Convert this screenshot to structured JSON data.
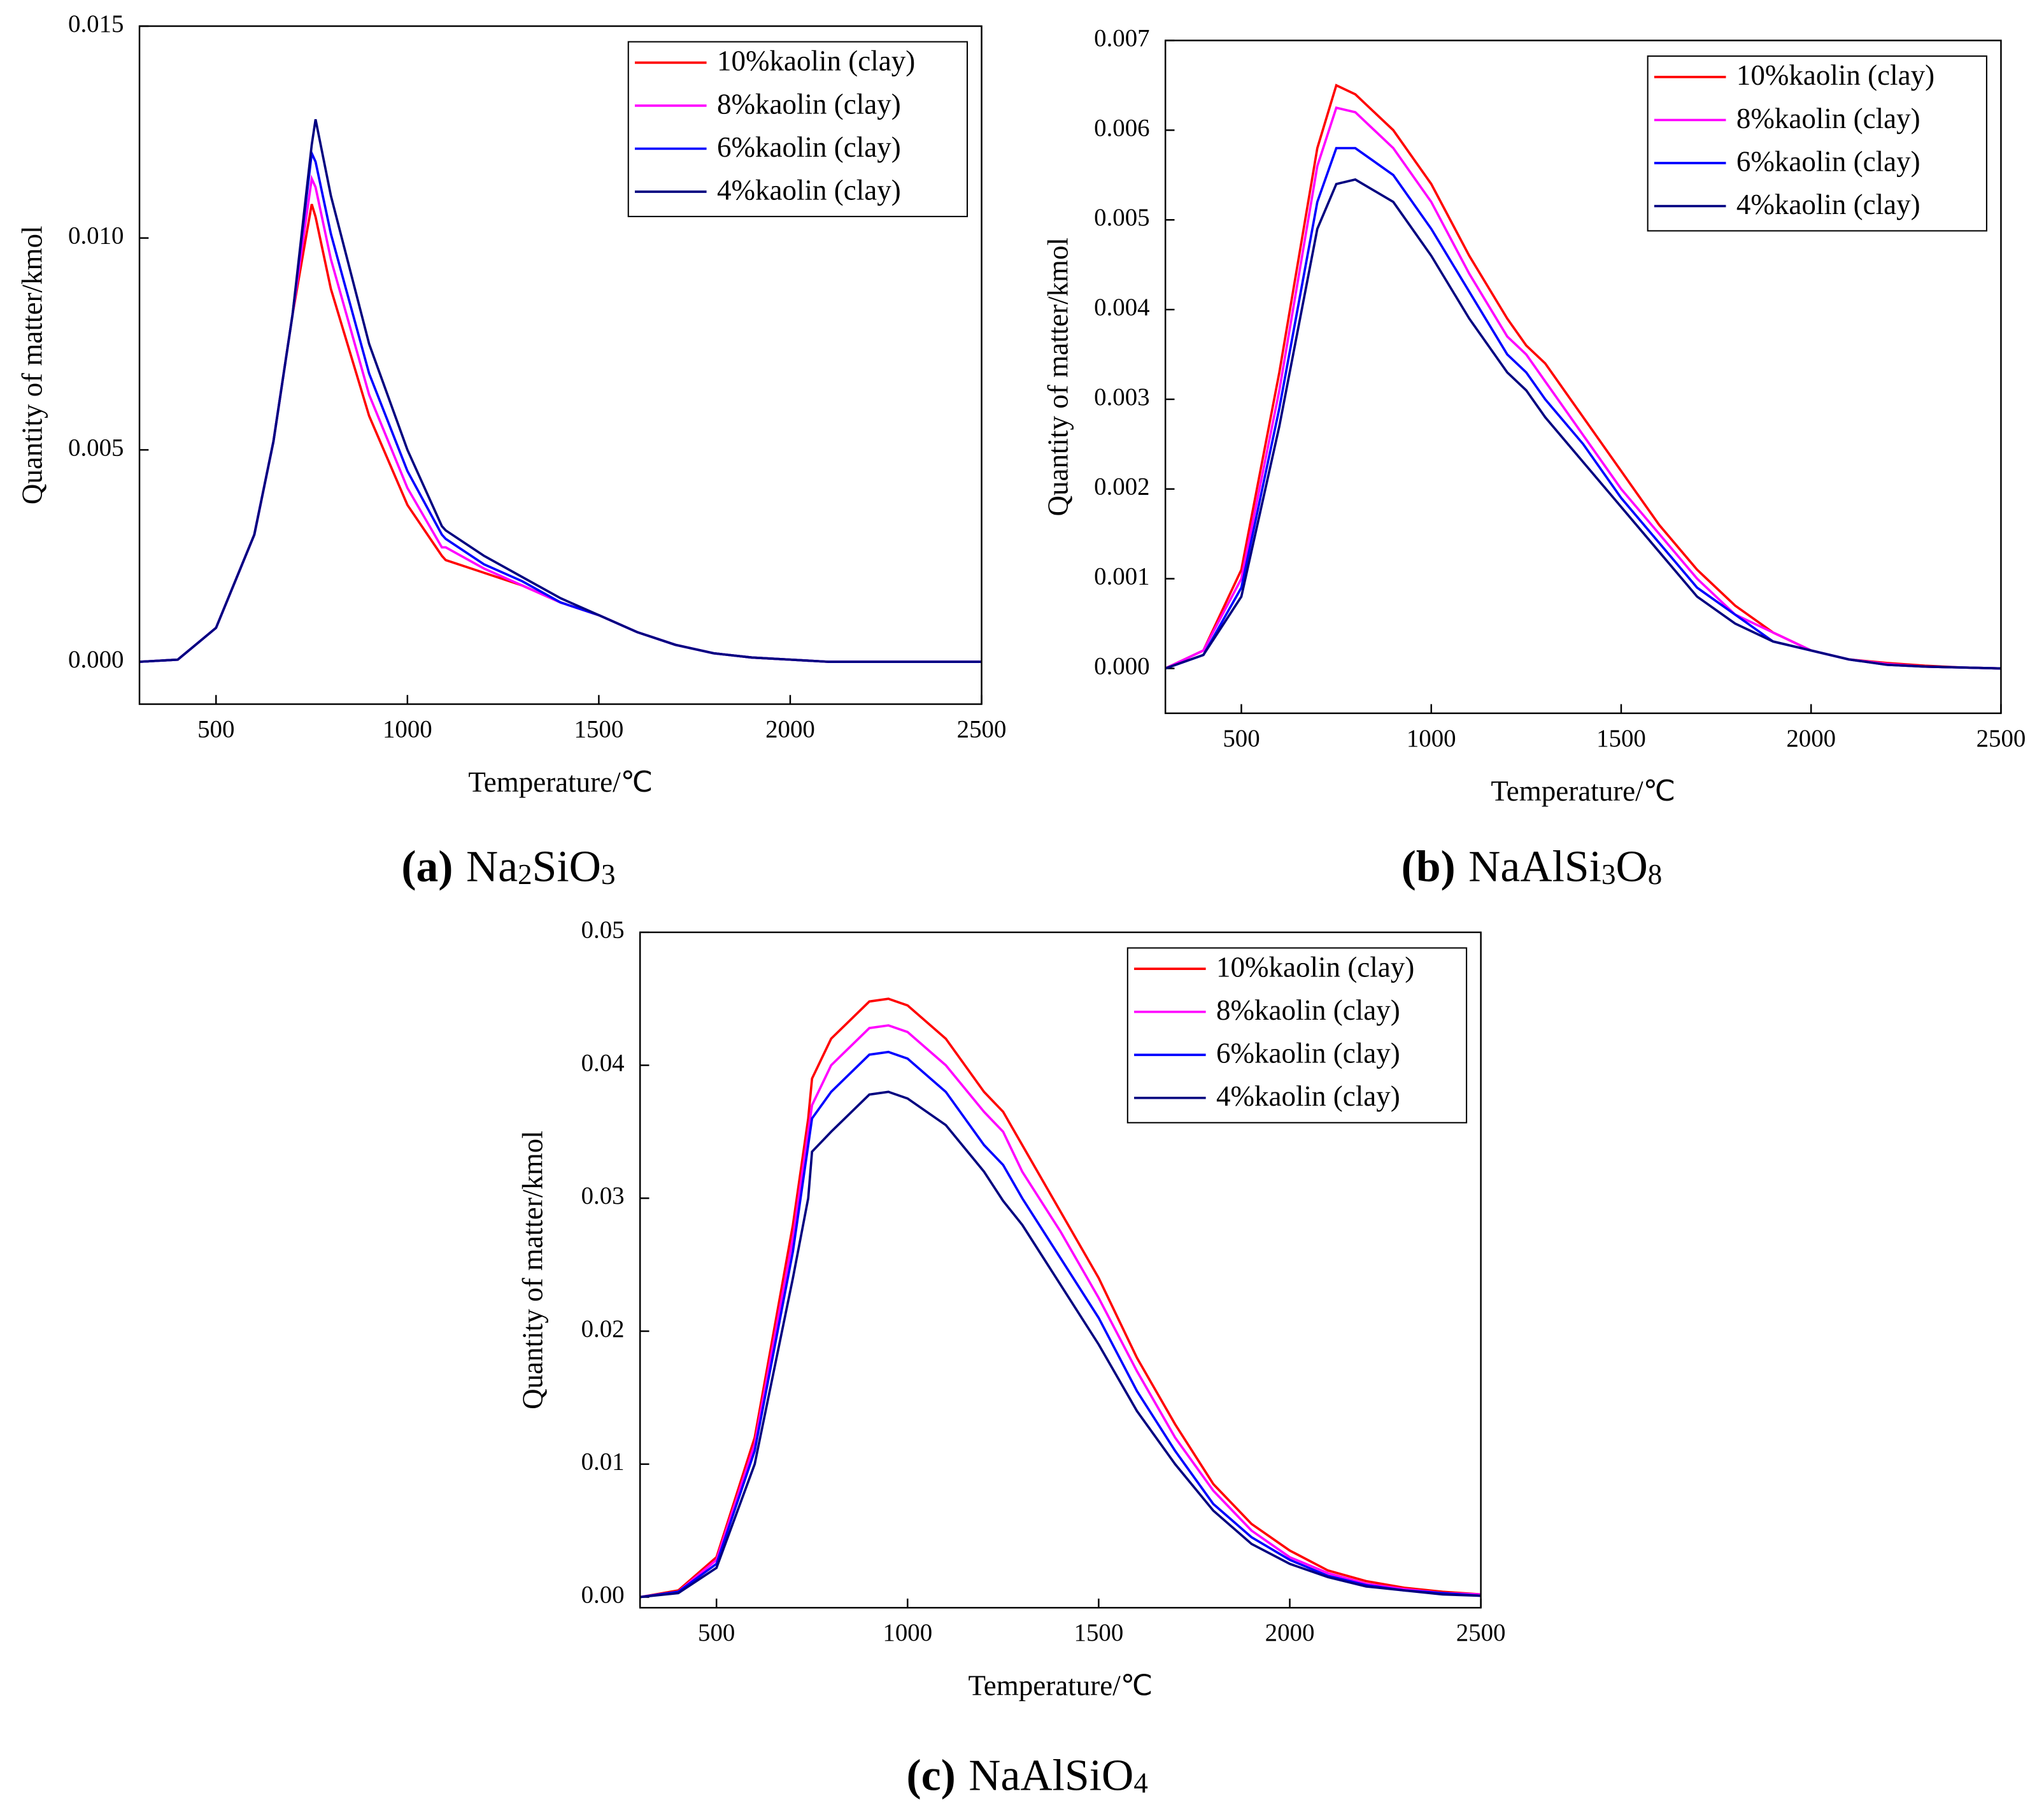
{
  "chart_data": [
    {
      "type": "line",
      "caption_label": "(a)",
      "caption": "Na2SiO3",
      "xlabel": "Temperature/℃",
      "ylabel": "Quantity of matter/kmol",
      "x": [
        300,
        400,
        500,
        600,
        650,
        700,
        750,
        760,
        800,
        900,
        1000,
        1090,
        1100,
        1200,
        1300,
        1400,
        1500,
        1600,
        1700,
        1800,
        1900,
        2000,
        2100,
        2200,
        2300,
        2400,
        2500
      ],
      "xlim": [
        300,
        2500
      ],
      "xticks": [
        500,
        1000,
        1500,
        2000,
        2500
      ],
      "ylim": [
        -0.001,
        0.015
      ],
      "yticks": [
        {
          "value": 0,
          "label": "0.000"
        },
        0.005,
        {
          "value": 0.01,
          "label": "0.010"
        },
        0.015
      ],
      "legend": "upper right",
      "series": [
        {
          "name": "10%kaolin (clay)",
          "color": "#ff0000",
          "values": [
            0,
            5e-05,
            0.0008,
            0.003,
            0.0052,
            0.0082,
            0.0108,
            0.0105,
            0.0088,
            0.0058,
            0.0037,
            0.0025,
            0.0024,
            0.0021,
            0.0018,
            0.0014,
            0.0011,
            0.0007,
            0.0004,
            0.0002,
            0.0001,
            5e-05,
            0,
            0,
            0,
            0,
            0
          ]
        },
        {
          "name": "8%kaolin (clay)",
          "color": "#ff00ff",
          "values": [
            0,
            5e-05,
            0.0008,
            0.003,
            0.0052,
            0.0082,
            0.0114,
            0.0112,
            0.0095,
            0.0063,
            0.0041,
            0.0027,
            0.0027,
            0.0022,
            0.0018,
            0.0014,
            0.0011,
            0.0007,
            0.0004,
            0.0002,
            0.0001,
            5e-05,
            0,
            0,
            0,
            0,
            0
          ]
        },
        {
          "name": "6%kaolin (clay)",
          "color": "#0000ff",
          "values": [
            0,
            5e-05,
            0.0008,
            0.003,
            0.0052,
            0.0082,
            0.012,
            0.0118,
            0.0101,
            0.0068,
            0.0045,
            0.003,
            0.0029,
            0.0023,
            0.0019,
            0.0014,
            0.0011,
            0.0007,
            0.0004,
            0.0002,
            0.0001,
            5e-05,
            0,
            0,
            0,
            0,
            0
          ]
        },
        {
          "name": "4%kaolin (clay)",
          "color": "#000080",
          "values": [
            0,
            5e-05,
            0.0008,
            0.003,
            0.0052,
            0.0082,
            0.0122,
            0.0128,
            0.011,
            0.0075,
            0.005,
            0.0032,
            0.0031,
            0.0025,
            0.002,
            0.0015,
            0.0011,
            0.0007,
            0.0004,
            0.0002,
            0.0001,
            5e-05,
            0,
            0,
            0,
            0,
            0
          ]
        }
      ]
    },
    {
      "type": "line",
      "caption_label": "(b)",
      "caption": "NaAlSi3O8",
      "xlabel": "Temperature/℃",
      "ylabel": "Quantity of matter/kmol",
      "x": [
        300,
        400,
        500,
        600,
        700,
        750,
        800,
        900,
        1000,
        1100,
        1200,
        1250,
        1300,
        1400,
        1500,
        1600,
        1700,
        1800,
        1900,
        2000,
        2100,
        2200,
        2300,
        2400,
        2500
      ],
      "xlim": [
        300,
        2500
      ],
      "xticks": [
        500,
        1000,
        1500,
        2000,
        2500
      ],
      "ylim": [
        -0.0005,
        0.007
      ],
      "yticks": [
        {
          "value": 0,
          "label": "0.000"
        },
        0.001,
        0.002,
        0.003,
        0.004,
        0.005,
        0.006,
        0.007
      ],
      "legend": "upper right",
      "series": [
        {
          "name": "10%kaolin (clay)",
          "color": "#ff0000",
          "values": [
            0,
            0.0002,
            0.0011,
            0.0033,
            0.0058,
            0.0065,
            0.0064,
            0.006,
            0.0054,
            0.0046,
            0.0039,
            0.0036,
            0.0034,
            0.0028,
            0.0022,
            0.0016,
            0.0011,
            0.0007,
            0.0004,
            0.0002,
            0.0001,
            6e-05,
            3e-05,
            1e-05,
            0
          ]
        },
        {
          "name": "8%kaolin (clay)",
          "color": "#ff00ff",
          "values": [
            0,
            0.0002,
            0.001,
            0.0031,
            0.0056,
            0.00625,
            0.0062,
            0.0058,
            0.0052,
            0.0044,
            0.0037,
            0.0035,
            0.0032,
            0.0026,
            0.002,
            0.0015,
            0.001,
            0.0006,
            0.0004,
            0.0002,
            0.0001,
            5e-05,
            2e-05,
            1e-05,
            0
          ]
        },
        {
          "name": "6%kaolin (clay)",
          "color": "#0000ff",
          "values": [
            0,
            0.00015,
            0.0009,
            0.0029,
            0.0052,
            0.0058,
            0.0058,
            0.0055,
            0.0049,
            0.0042,
            0.0035,
            0.0033,
            0.003,
            0.0025,
            0.0019,
            0.0014,
            0.0009,
            0.0006,
            0.0003,
            0.0002,
            0.0001,
            4e-05,
            2e-05,
            1e-05,
            0
          ]
        },
        {
          "name": "4%kaolin (clay)",
          "color": "#000080",
          "values": [
            0,
            0.00015,
            0.0008,
            0.0027,
            0.0049,
            0.0054,
            0.00545,
            0.0052,
            0.0046,
            0.0039,
            0.0033,
            0.0031,
            0.0028,
            0.0023,
            0.0018,
            0.0013,
            0.0008,
            0.0005,
            0.0003,
            0.0002,
            0.0001,
            4e-05,
            2e-05,
            1e-05,
            0
          ]
        }
      ]
    },
    {
      "type": "line",
      "caption_label": "(c)",
      "caption": "NaAlSiO4",
      "xlabel": "Temperature/℃",
      "ylabel": "Quantity of matter/kmol",
      "x": [
        300,
        400,
        500,
        600,
        700,
        740,
        750,
        800,
        900,
        950,
        1000,
        1100,
        1200,
        1250,
        1300,
        1400,
        1500,
        1600,
        1700,
        1800,
        1900,
        2000,
        2100,
        2200,
        2300,
        2400,
        2500
      ],
      "xlim": [
        300,
        2500
      ],
      "xticks": [
        500,
        1000,
        1500,
        2000,
        2500
      ],
      "ylim": [
        -0.0008,
        0.05
      ],
      "yticks": [
        {
          "value": 0,
          "label": "0.00"
        },
        0.01,
        0.02,
        0.03,
        0.04,
        0.05
      ],
      "legend": "upper right",
      "series": [
        {
          "name": "10%kaolin (clay)",
          "color": "#ff0000",
          "values": [
            0,
            0.0005,
            0.003,
            0.012,
            0.028,
            0.036,
            0.039,
            0.042,
            0.0448,
            0.045,
            0.0445,
            0.042,
            0.038,
            0.0365,
            0.034,
            0.029,
            0.024,
            0.018,
            0.013,
            0.0085,
            0.0055,
            0.0035,
            0.002,
            0.0012,
            0.0007,
            0.0004,
            0.0002
          ]
        },
        {
          "name": "8%kaolin (clay)",
          "color": "#ff00ff",
          "values": [
            0,
            0.0004,
            0.0028,
            0.0115,
            0.027,
            0.035,
            0.037,
            0.04,
            0.0428,
            0.043,
            0.0425,
            0.04,
            0.0365,
            0.035,
            0.032,
            0.0275,
            0.0225,
            0.017,
            0.012,
            0.008,
            0.005,
            0.003,
            0.0018,
            0.001,
            0.0006,
            0.0003,
            0.0002
          ]
        },
        {
          "name": "6%kaolin (clay)",
          "color": "#0000ff",
          "values": [
            0,
            0.0004,
            0.0025,
            0.011,
            0.026,
            0.034,
            0.036,
            0.038,
            0.0408,
            0.041,
            0.0405,
            0.038,
            0.034,
            0.0325,
            0.03,
            0.0255,
            0.021,
            0.0155,
            0.011,
            0.007,
            0.0045,
            0.0028,
            0.0016,
            0.0009,
            0.0005,
            0.0003,
            0.0001
          ]
        },
        {
          "name": "4%kaolin (clay)",
          "color": "#000080",
          "values": [
            0,
            0.0003,
            0.0022,
            0.01,
            0.024,
            0.03,
            0.0335,
            0.035,
            0.0378,
            0.038,
            0.0375,
            0.0355,
            0.032,
            0.0298,
            0.028,
            0.0235,
            0.019,
            0.014,
            0.01,
            0.0065,
            0.004,
            0.0025,
            0.0015,
            0.0008,
            0.0005,
            0.0002,
            0.0001
          ]
        }
      ]
    }
  ]
}
